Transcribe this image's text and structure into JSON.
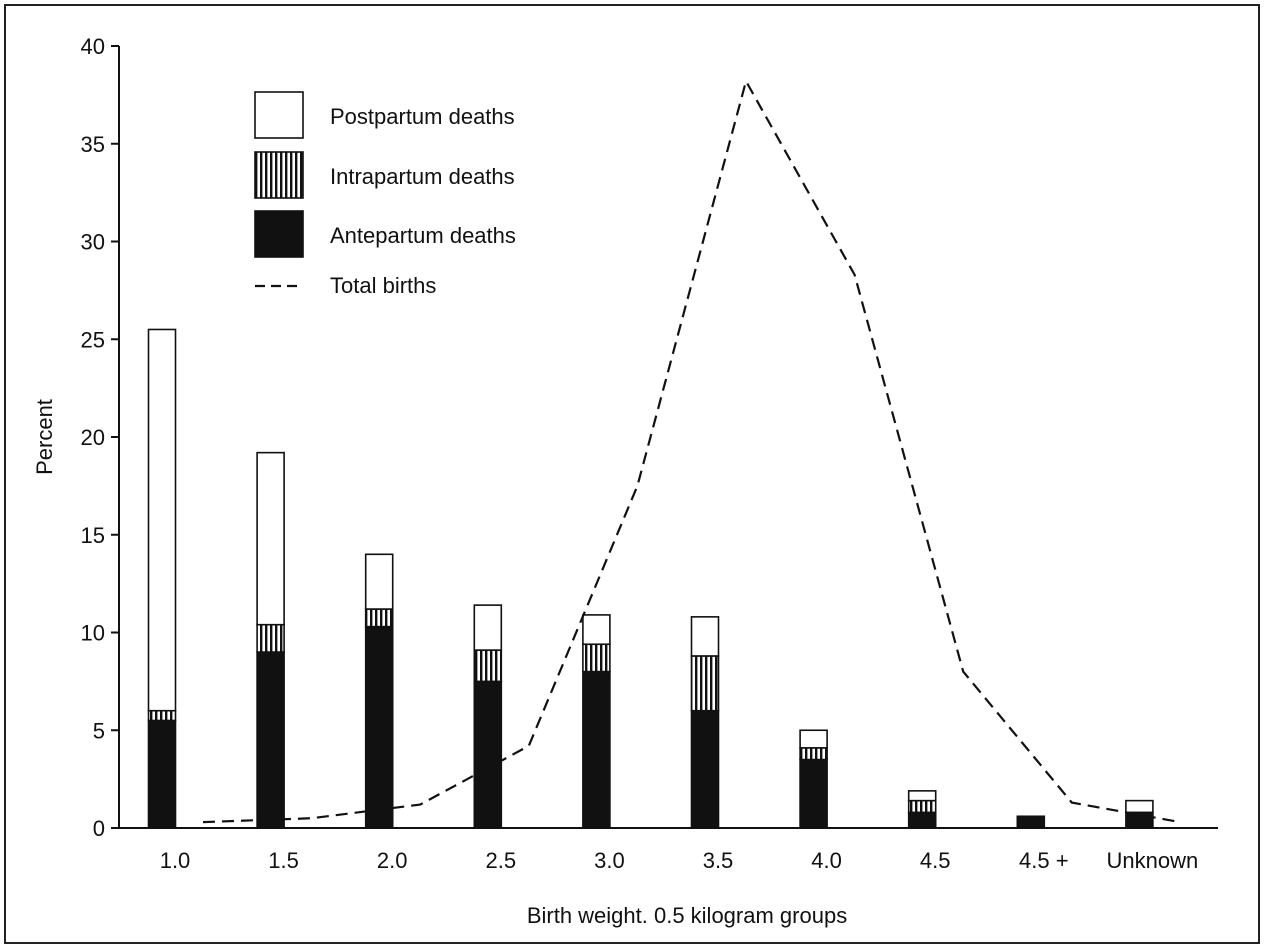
{
  "chart_data": {
    "type": "bar",
    "stacked": true,
    "xlabel": "Birth weight. 0.5 kilogram groups",
    "ylabel": "Percent",
    "ylim": [
      0,
      40
    ],
    "yticks": [
      0,
      5,
      10,
      15,
      20,
      25,
      30,
      35,
      40
    ],
    "categories": [
      "1.0",
      "1.5",
      "2.0",
      "2.5",
      "3.0",
      "3.5",
      "4.0",
      "4.5",
      "4.5 +",
      "Unknown"
    ],
    "series": [
      {
        "name": "Antepartum deaths",
        "pattern": "solid-black",
        "values": [
          5.5,
          9.0,
          10.3,
          7.5,
          8.0,
          6.0,
          3.5,
          0.8,
          0.6,
          0.8
        ]
      },
      {
        "name": "Intrapartum deaths",
        "pattern": "vertical-hatch",
        "values": [
          0.5,
          1.4,
          0.9,
          1.6,
          1.4,
          2.8,
          0.6,
          0.6,
          0.0,
          0.0
        ]
      },
      {
        "name": "Postpartum deaths",
        "pattern": "white",
        "values": [
          19.5,
          8.8,
          2.8,
          2.3,
          1.5,
          2.0,
          0.9,
          0.5,
          0.0,
          0.6
        ]
      }
    ],
    "line": {
      "name": "Total births",
      "style": "dashed",
      "x": [
        "1.0",
        "1.5",
        "2.0",
        "2.5",
        "3.0",
        "3.5",
        "4.0",
        "4.5",
        "4.5 +",
        "Unknown"
      ],
      "values": [
        0.3,
        0.5,
        1.2,
        4.2,
        17.5,
        38.2,
        28.3,
        8.0,
        1.3,
        0.3
      ]
    },
    "legend": {
      "placement": "top-left",
      "entries": [
        "Postpartum deaths",
        "Intrapartum deaths",
        "Antepartum deaths",
        "Total births"
      ]
    },
    "grid": false
  }
}
